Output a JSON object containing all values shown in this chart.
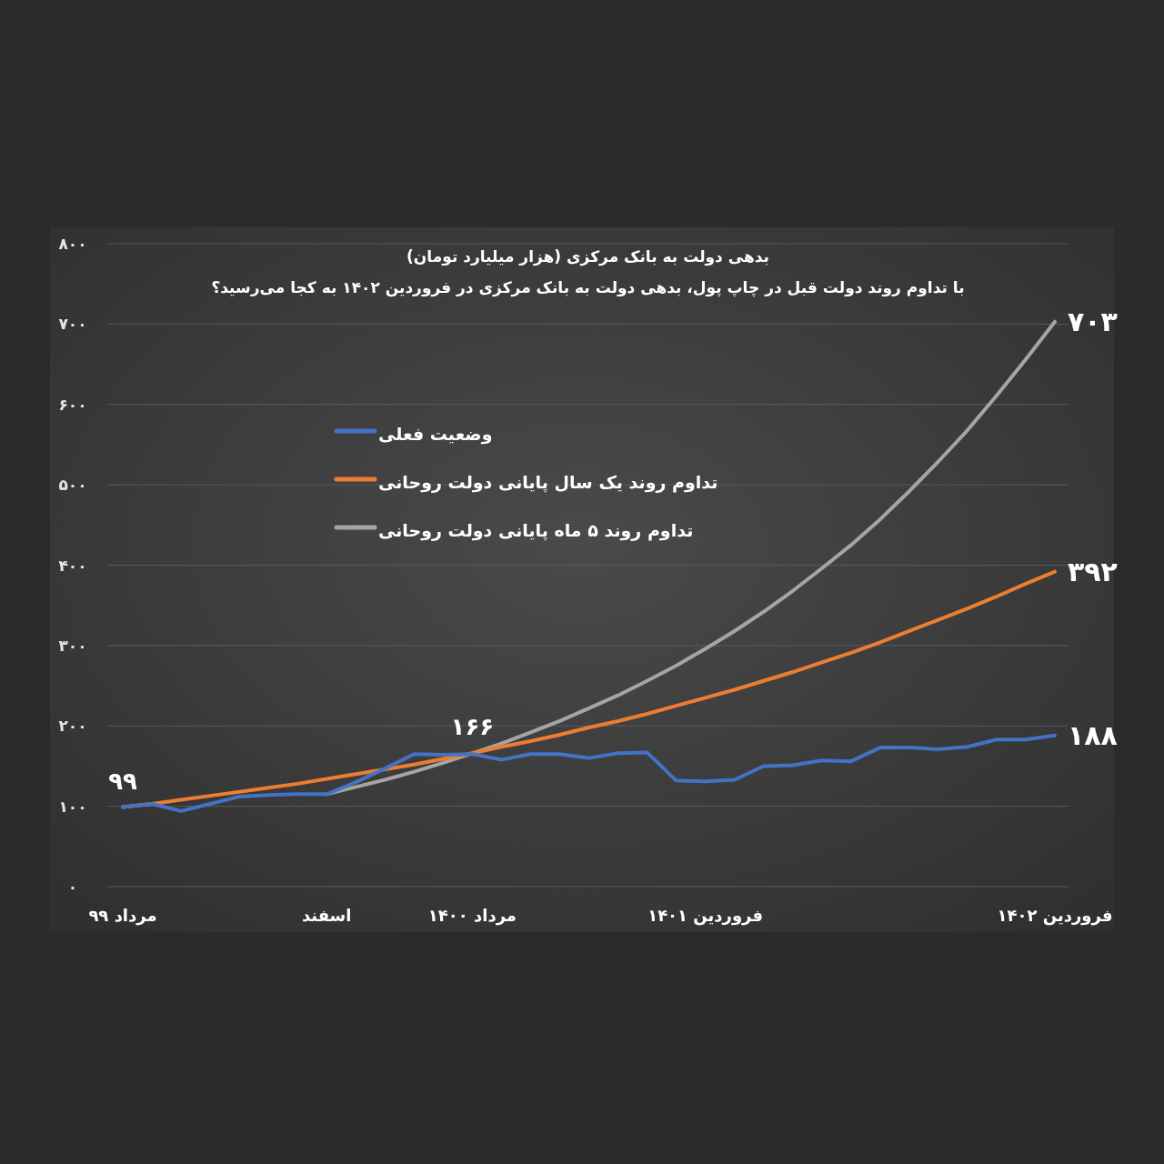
{
  "chart_data": {
    "type": "line",
    "title": "بدهی دولت به بانک مرکزی (هزار میلیارد تومان)",
    "subtitle": "با تداوم روند دولت قبل در چاپ پول، بدهی دولت به بانک مرکزی در فروردین ۱۴۰۲ به کجا می‌رسید؟",
    "categories": [
      "مرداد ۹۹",
      null,
      null,
      null,
      null,
      null,
      null,
      "اسفند",
      null,
      null,
      null,
      null,
      "مرداد ۱۴۰۰",
      null,
      null,
      null,
      null,
      null,
      null,
      null,
      "فروردین ۱۴۰۱",
      null,
      null,
      null,
      null,
      null,
      null,
      null,
      null,
      null,
      null,
      null,
      "فروردین ۱۴۰۲"
    ],
    "series": [
      {
        "name": "وضعیت فعلی",
        "color": "#4472c4",
        "values": [
          99,
          103,
          94,
          103,
          112,
          114,
          115,
          115,
          130,
          147,
          165,
          164,
          165,
          158,
          165,
          165,
          160,
          166,
          167,
          132,
          131,
          133,
          150,
          151,
          157,
          156,
          173,
          173,
          171,
          174,
          183,
          183,
          188
        ],
        "value_labels": [
          null,
          null,
          null,
          null,
          null,
          null,
          null,
          null,
          null,
          null,
          null,
          null,
          null,
          null,
          null,
          null,
          null,
          null,
          null,
          null,
          null,
          null,
          null,
          null,
          null,
          null,
          null,
          null,
          null,
          null,
          null,
          null,
          "۱۸۸"
        ]
      },
      {
        "name": "تداوم روند یک سال پایانی دولت روحانی",
        "color": "#ed7d31",
        "values": [
          99,
          103,
          108,
          113,
          118,
          123,
          128,
          134,
          140,
          146,
          152,
          159,
          166,
          174,
          181,
          189,
          198,
          206,
          215,
          225,
          235,
          245,
          256,
          267,
          279,
          291,
          304,
          318,
          332,
          346,
          361,
          377,
          392
        ],
        "value_labels": [
          null,
          null,
          null,
          null,
          null,
          null,
          null,
          null,
          null,
          null,
          null,
          null,
          null,
          null,
          null,
          null,
          null,
          null,
          null,
          null,
          null,
          null,
          null,
          null,
          null,
          null,
          null,
          null,
          null,
          null,
          null,
          null,
          "۳۹۲"
        ]
      },
      {
        "name": "تداوم روند ۵ ماه پایانی دولت روحانی",
        "color": "#a5a5a5",
        "values": [
          null,
          null,
          null,
          null,
          null,
          null,
          null,
          115,
          124,
          133,
          143,
          154,
          166,
          178,
          192,
          206,
          222,
          238,
          256,
          275,
          296,
          318,
          342,
          368,
          396,
          425,
          457,
          492,
          529,
          568,
          611,
          656,
          703
        ],
        "value_labels": [
          null,
          null,
          null,
          null,
          null,
          null,
          null,
          null,
          null,
          null,
          null,
          null,
          null,
          null,
          null,
          null,
          null,
          null,
          null,
          null,
          null,
          null,
          null,
          null,
          null,
          null,
          null,
          null,
          null,
          null,
          null,
          null,
          "۷۰۳"
        ]
      }
    ],
    "ylim": [
      0,
      800
    ],
    "yticks": [
      {
        "value": 0,
        "label": "۰"
      },
      {
        "value": 100,
        "label": "۱۰۰"
      },
      {
        "value": 200,
        "label": "۲۰۰"
      },
      {
        "value": 300,
        "label": "۳۰۰"
      },
      {
        "value": 400,
        "label": "۴۰۰"
      },
      {
        "value": 500,
        "label": "۵۰۰"
      },
      {
        "value": 600,
        "label": "۶۰۰"
      },
      {
        "value": 700,
        "label": "۷۰۰"
      },
      {
        "value": 800,
        "label": "۸۰۰"
      }
    ],
    "annotations": [
      {
        "text": "۹۹",
        "x": "مرداد ۹۹",
        "y": 99
      },
      {
        "text": "۱۶۶",
        "x": "مرداد ۱۴۰۰",
        "y": 166
      }
    ],
    "grid": "y",
    "legend": "top left",
    "marker": "none",
    "line_style": "solid"
  }
}
